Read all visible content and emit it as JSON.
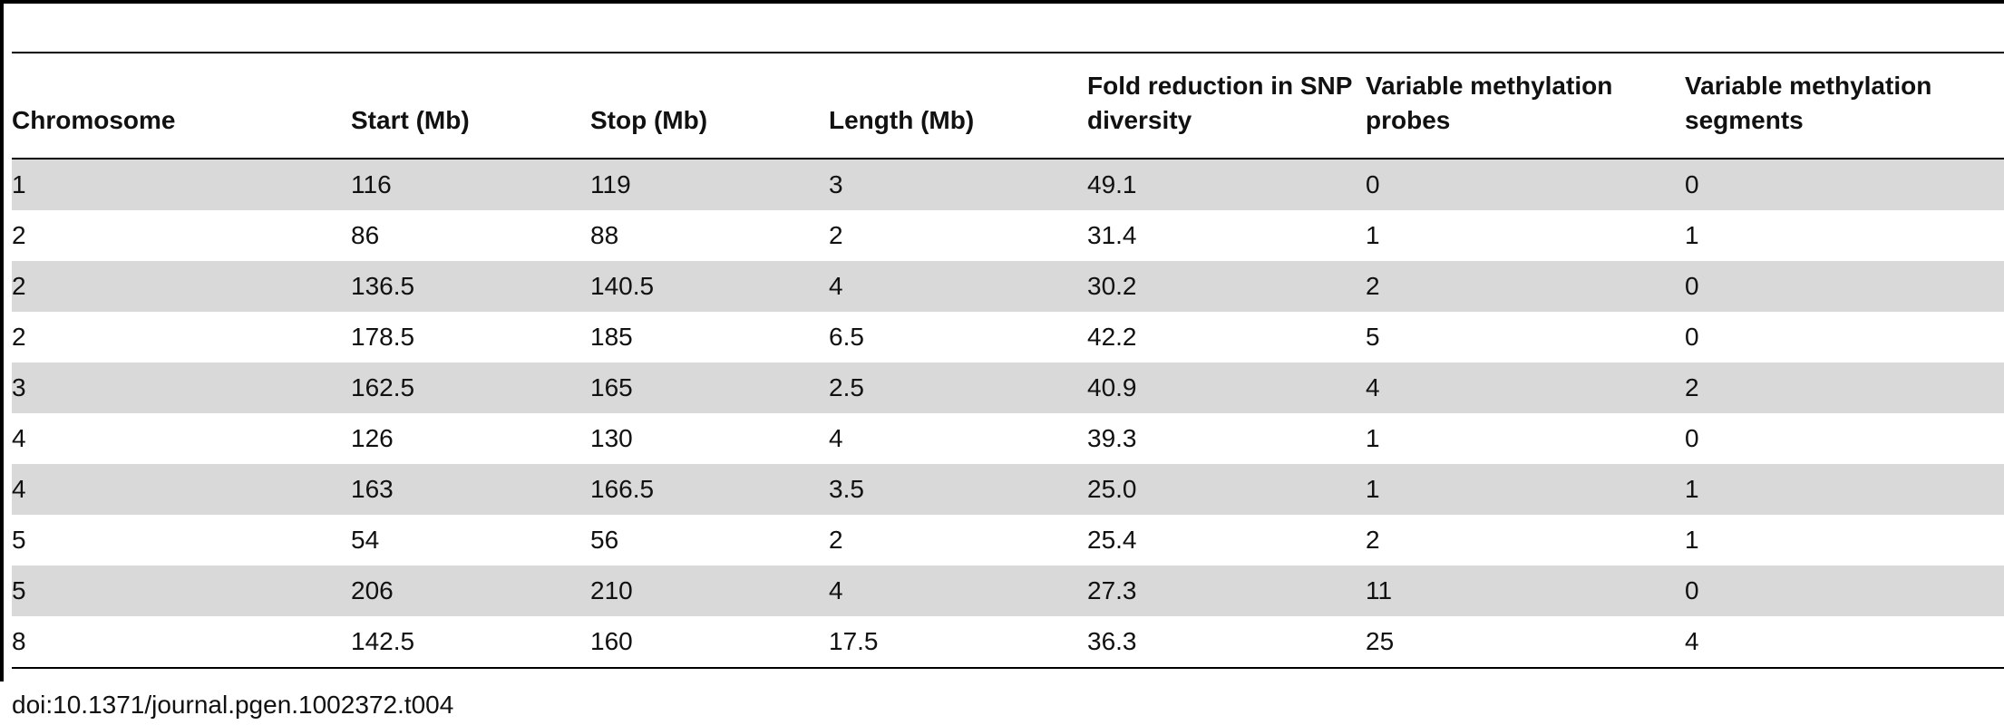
{
  "table": {
    "columns": [
      "Chromosome",
      "Start (Mb)",
      "Stop (Mb)",
      "Length (Mb)",
      "Fold reduction in SNP diversity",
      "Variable methylation probes",
      "Variable methylation segments"
    ],
    "rows": [
      [
        "1",
        "116",
        "119",
        "3",
        "49.1",
        "0",
        "0"
      ],
      [
        "2",
        "86",
        "88",
        "2",
        "31.4",
        "1",
        "1"
      ],
      [
        "2",
        "136.5",
        "140.5",
        "4",
        "30.2",
        "2",
        "0"
      ],
      [
        "2",
        "178.5",
        "185",
        "6.5",
        "42.2",
        "5",
        "0"
      ],
      [
        "3",
        "162.5",
        "165",
        "2.5",
        "40.9",
        "4",
        "2"
      ],
      [
        "4",
        "126",
        "130",
        "4",
        "39.3",
        "1",
        "0"
      ],
      [
        "4",
        "163",
        "166.5",
        "3.5",
        "25.0",
        "1",
        "1"
      ],
      [
        "5",
        "54",
        "56",
        "2",
        "25.4",
        "2",
        "1"
      ],
      [
        "5",
        "206",
        "210",
        "4",
        "27.3",
        "11",
        "0"
      ],
      [
        "8",
        "142.5",
        "160",
        "17.5",
        "36.3",
        "25",
        "4"
      ]
    ]
  },
  "footer": {
    "doi": "doi:10.1371/journal.pgen.1002372.t004"
  }
}
